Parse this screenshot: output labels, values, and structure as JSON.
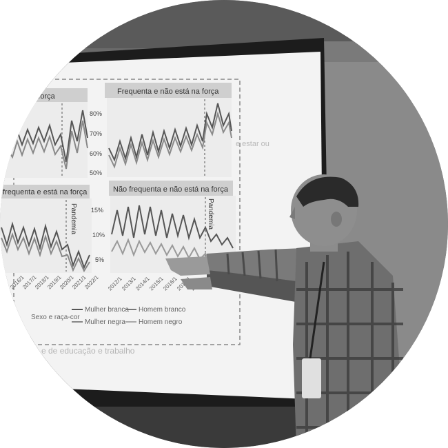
{
  "panels": [
    {
      "title": "na força",
      "ticks": [],
      "marker": ""
    },
    {
      "title": "Frequenta e não está na força",
      "ticks": [
        "80%",
        "70%",
        "60%",
        "50%"
      ],
      "marker": ""
    },
    {
      "title": "frequenta e está na força",
      "ticks": [],
      "marker": "Pandemia"
    },
    {
      "title": "Não frequenta e não está na força",
      "ticks": [
        "15%",
        "10%",
        "5%"
      ],
      "marker": "Pandemia"
    }
  ],
  "x_ticks_left": [
    "2016/1",
    "2017/1",
    "2018/1",
    "2019/1",
    "2020/1",
    "2021/1",
    "2022/1"
  ],
  "x_ticks_right": [
    "2012/1",
    "2013/1",
    "2014/1",
    "2015/1",
    "2016/1",
    "2017/1",
    "201"
  ],
  "legend": {
    "title": "Sexo e raça-cor",
    "items": [
      "Mulher branca",
      "Mulher negra",
      "Homem branco",
      "Homem negro"
    ]
  },
  "side_fragment": "e estar ou",
  "footer_fragment": "e de educação e trabalho"
}
